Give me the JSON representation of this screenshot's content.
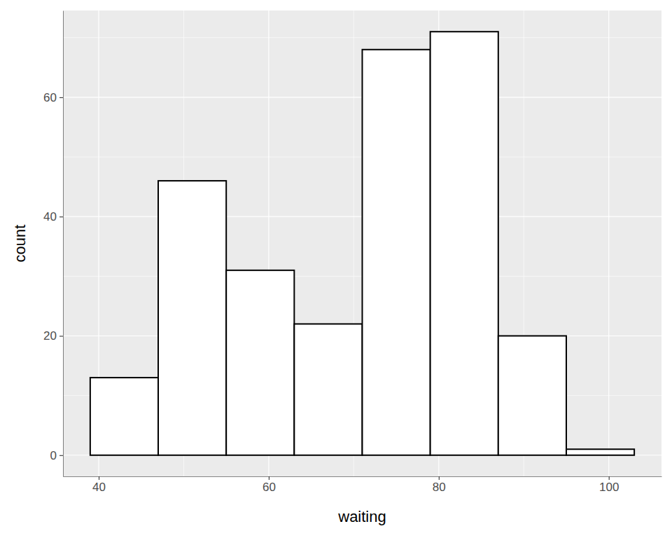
{
  "chart_data": {
    "type": "histogram",
    "xlabel": "waiting",
    "ylabel": "count",
    "bins": [
      39,
      47,
      55,
      63,
      71,
      79,
      87,
      95,
      103
    ],
    "values": [
      13,
      46,
      31,
      22,
      68,
      71,
      20,
      1
    ],
    "color": "#ffffff",
    "xlim": [
      35.8,
      106.2
    ],
    "xticks": [
      40,
      60,
      80,
      100
    ],
    "ylim": [
      -3.55,
      74.55
    ],
    "yticks": [
      0,
      20,
      40,
      60
    ],
    "grid": true
  }
}
